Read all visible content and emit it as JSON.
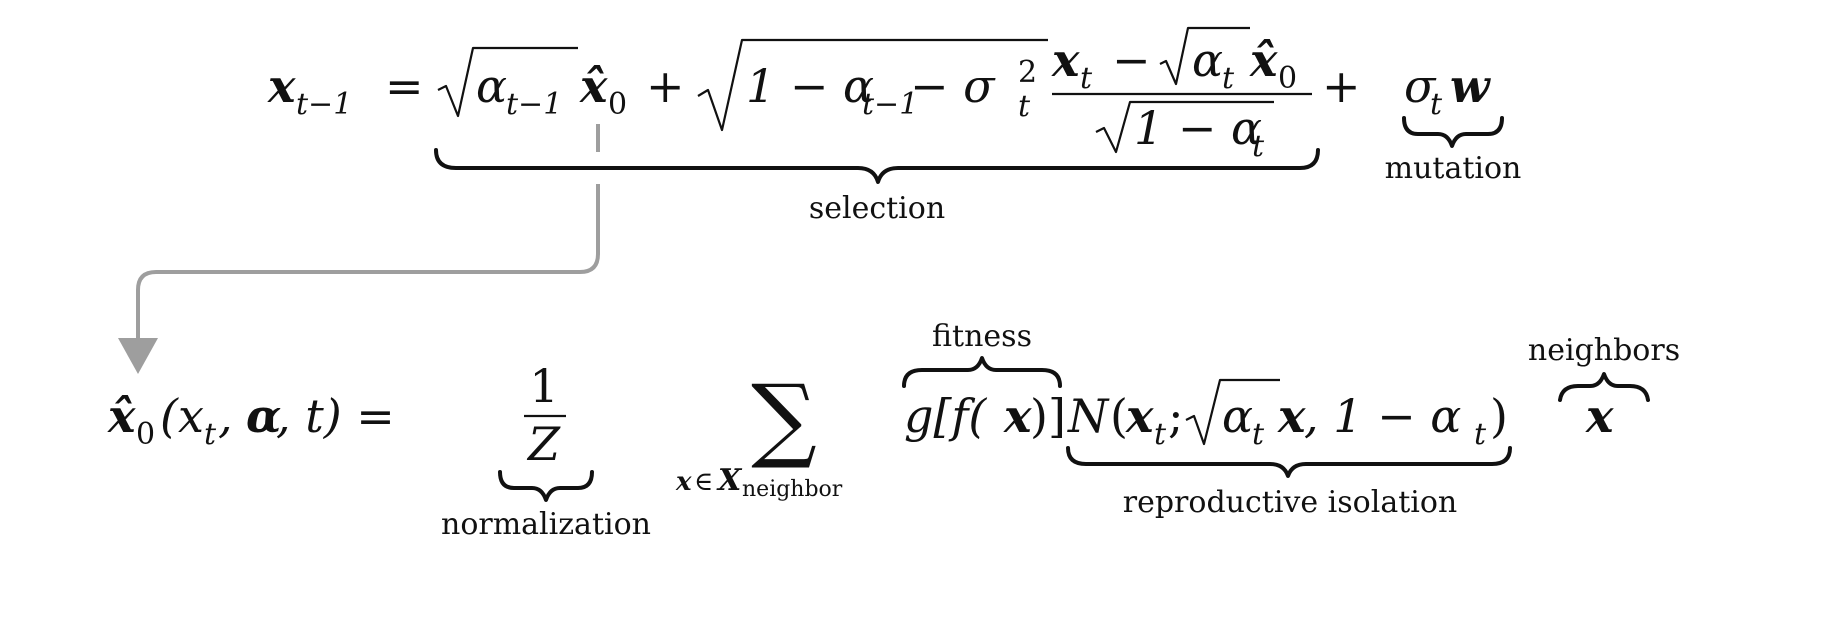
{
  "equations": {
    "update": {
      "lhs": "x",
      "lhs_sub": "t−1",
      "eq": "=",
      "sqrt1_arg": "α",
      "sqrt1_arg_sub": "t−1",
      "x0hat": "x̂",
      "x0hat_sub": "0",
      "plus1": "+",
      "sqrt2_arg": "1 − α",
      "sqrt2_sub": "t−1",
      "sqrt2_tail": " − σ",
      "sqrt2_sup": "2",
      "sqrt2_sigma_sub": "t",
      "frac_num_x": "x",
      "frac_num_xsub": "t",
      "frac_num_minus": "−",
      "frac_num_alpha": "α",
      "frac_num_alpha_sub": "t",
      "frac_num_x0": "x̂",
      "frac_num_x0_sub": "0",
      "frac_den": "1 − α",
      "frac_den_sub": "t",
      "plus2": "+",
      "sigma": "σ",
      "sigma_sub": "t",
      "w": "w"
    },
    "estimate": {
      "lhs": "x̂",
      "lhs_sub": "0",
      "args": "(x",
      "args_sub": "t",
      "args_rest_1": ", ",
      "args_alpha": "α",
      "args_rest_2": ", t) =",
      "num": "1",
      "den": "Z",
      "sum": "∑",
      "sum_sub_x": "x",
      "sum_sub_in": "∈",
      "sum_sub_X": "X",
      "sum_sub_neighbor": "neighbor",
      "g": "g[f(",
      "g_x": "x",
      "g_close": ")]",
      "N": "N",
      "N_open": "(",
      "N_x": "x",
      "N_xsub": "t",
      "N_semi": ";",
      "N_alpha": "α",
      "N_alpha_sub": "t",
      "N_x2": "x",
      "N_rest": ", 1 − α",
      "N_rest_sub": "t",
      "N_close": ")",
      "x": "x"
    }
  },
  "annotations": {
    "selection": "selection",
    "mutation": "mutation",
    "fitness": "fitness",
    "normalization": "normalization",
    "reproductive_isolation": "reproductive isolation",
    "neighbors": "neighbors"
  },
  "colors": {
    "ink": "#111111",
    "arrow": "#9e9e9e"
  }
}
